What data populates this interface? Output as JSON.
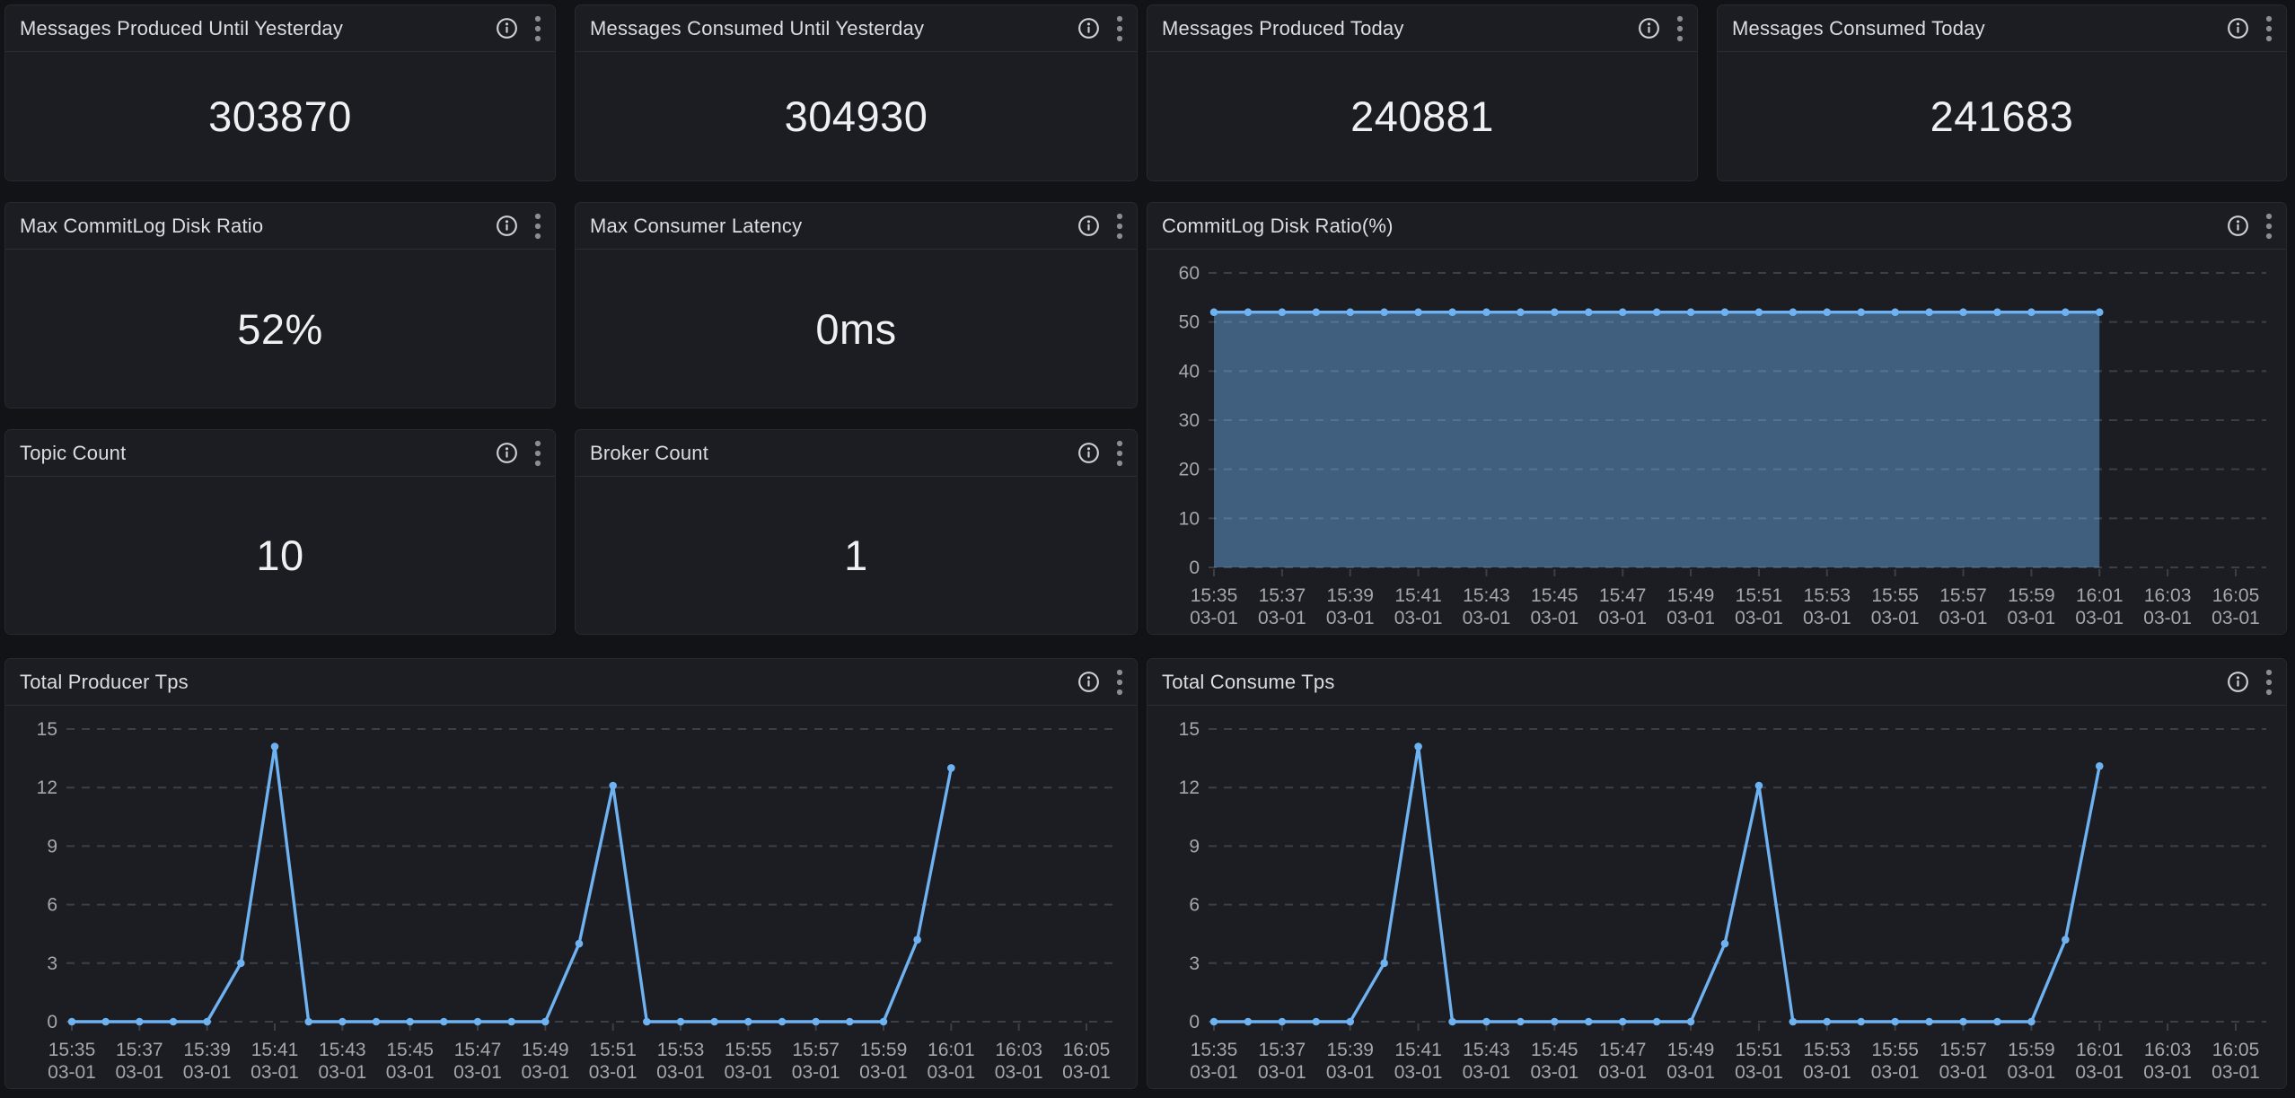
{
  "colors": {
    "page_bg": "#111317",
    "panel_bg": "#1b1d22",
    "panel_border": "#26292f",
    "header_divider": "#2b2e34",
    "title_text": "#dcdde0",
    "stat_text": "#eef0f1",
    "axis_text": "#a3a7ad",
    "grid_line": "#3c4046",
    "series_line": "#6fb2f1",
    "series_fill": "rgba(111,178,241,0.45)",
    "info_icon": "#cdd0d3",
    "menu_icon": "#8a8e94"
  },
  "icons": {
    "info": "info-icon",
    "menu": "kebab-menu-icon"
  },
  "stat_panels": [
    {
      "title": "Messages Produced Until Yesterday",
      "value": "303870"
    },
    {
      "title": "Messages Consumed Until Yesterday",
      "value": "304930"
    },
    {
      "title": "Messages Produced Today",
      "value": "240881"
    },
    {
      "title": "Messages Consumed Today",
      "value": "241683"
    },
    {
      "title": "Max CommitLog Disk Ratio",
      "value": "52%"
    },
    {
      "title": "Max Consumer Latency",
      "value": "0ms"
    },
    {
      "title": "Topic Count",
      "value": "10"
    },
    {
      "title": "Broker Count",
      "value": "1"
    }
  ],
  "chart_data": [
    {
      "type": "area",
      "title": "CommitLog Disk Ratio(%)",
      "x": [
        "15:35",
        "15:36",
        "15:37",
        "15:38",
        "15:39",
        "15:40",
        "15:41",
        "15:42",
        "15:43",
        "15:44",
        "15:45",
        "15:46",
        "15:47",
        "15:48",
        "15:49",
        "15:50",
        "15:51",
        "15:52",
        "15:53",
        "15:54",
        "15:55",
        "15:56",
        "15:57",
        "15:58",
        "15:59",
        "16:00",
        "16:01"
      ],
      "values": [
        52,
        52,
        52,
        52,
        52,
        52,
        52,
        52,
        52,
        52,
        52,
        52,
        52,
        52,
        52,
        52,
        52,
        52,
        52,
        52,
        52,
        52,
        52,
        52,
        52,
        52,
        52
      ],
      "x_date": "03-01",
      "xtick_times": [
        "15:35",
        "15:37",
        "15:39",
        "15:41",
        "15:43",
        "15:45",
        "15:47",
        "15:49",
        "15:51",
        "15:53",
        "15:55",
        "15:57",
        "15:59",
        "16:01",
        "16:03",
        "16:05"
      ],
      "ylim": [
        0,
        60
      ],
      "yticks": [
        0,
        10,
        20,
        30,
        40,
        50,
        60
      ],
      "grid": "dashed-horizontal",
      "legend": "none",
      "markers": true
    },
    {
      "type": "line",
      "title": "Total Producer Tps",
      "x": [
        "15:35",
        "15:36",
        "15:37",
        "15:38",
        "15:39",
        "15:40",
        "15:41",
        "15:42",
        "15:43",
        "15:44",
        "15:45",
        "15:46",
        "15:47",
        "15:48",
        "15:49",
        "15:50",
        "15:51",
        "15:52",
        "15:53",
        "15:54",
        "15:55",
        "15:56",
        "15:57",
        "15:58",
        "15:59",
        "16:00",
        "16:01"
      ],
      "values": [
        0,
        0,
        0,
        0,
        0,
        3,
        14.1,
        0,
        0,
        0,
        0,
        0,
        0,
        0,
        0,
        4,
        12.1,
        0,
        0,
        0,
        0,
        0,
        0,
        0,
        0,
        4.2,
        13
      ],
      "x_date": "03-01",
      "xtick_times": [
        "15:35",
        "15:37",
        "15:39",
        "15:41",
        "15:43",
        "15:45",
        "15:47",
        "15:49",
        "15:51",
        "15:53",
        "15:55",
        "15:57",
        "15:59",
        "16:01",
        "16:03",
        "16:05"
      ],
      "ylim": [
        0,
        15
      ],
      "yticks": [
        0,
        3,
        6,
        9,
        12,
        15
      ],
      "grid": "dashed-horizontal",
      "legend": "none",
      "markers": true
    },
    {
      "type": "line",
      "title": "Total Consume Tps",
      "x": [
        "15:35",
        "15:36",
        "15:37",
        "15:38",
        "15:39",
        "15:40",
        "15:41",
        "15:42",
        "15:43",
        "15:44",
        "15:45",
        "15:46",
        "15:47",
        "15:48",
        "15:49",
        "15:50",
        "15:51",
        "15:52",
        "15:53",
        "15:54",
        "15:55",
        "15:56",
        "15:57",
        "15:58",
        "15:59",
        "16:00",
        "16:01"
      ],
      "values": [
        0,
        0,
        0,
        0,
        0,
        3,
        14.1,
        0,
        0,
        0,
        0,
        0,
        0,
        0,
        0,
        4,
        12.1,
        0,
        0,
        0,
        0,
        0,
        0,
        0,
        0,
        4.2,
        13.1
      ],
      "x_date": "03-01",
      "xtick_times": [
        "15:35",
        "15:37",
        "15:39",
        "15:41",
        "15:43",
        "15:45",
        "15:47",
        "15:49",
        "15:51",
        "15:53",
        "15:55",
        "15:57",
        "15:59",
        "16:01",
        "16:03",
        "16:05"
      ],
      "ylim": [
        0,
        15
      ],
      "yticks": [
        0,
        3,
        6,
        9,
        12,
        15
      ],
      "grid": "dashed-horizontal",
      "legend": "none",
      "markers": true
    }
  ]
}
